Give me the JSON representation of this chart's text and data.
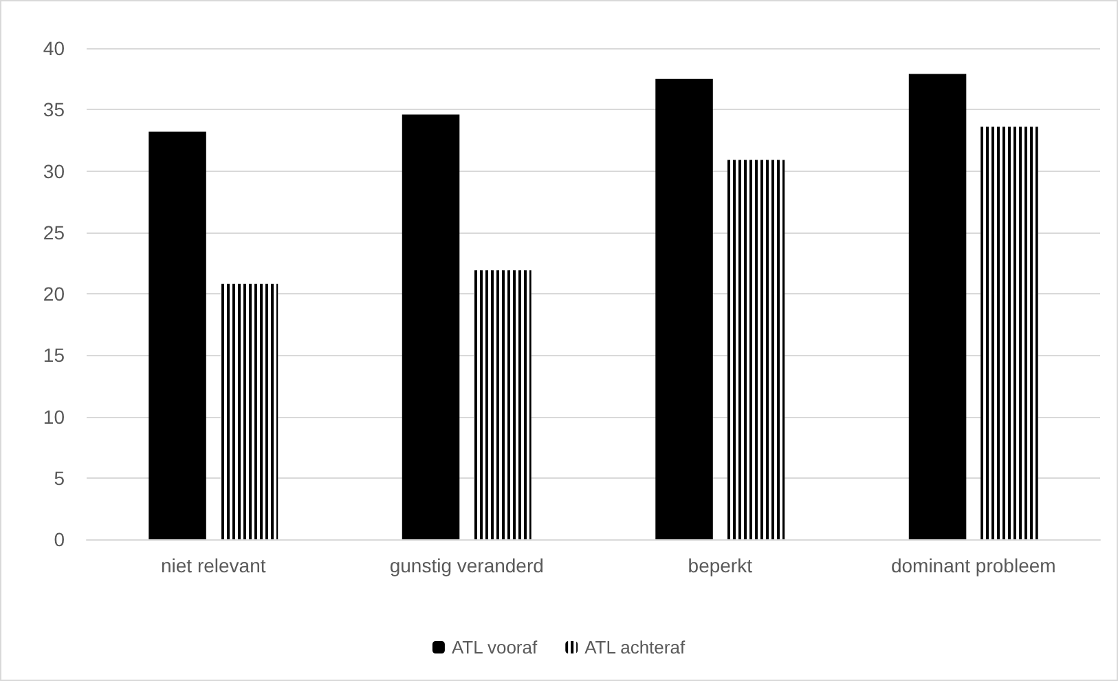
{
  "chart_data": {
    "type": "bar",
    "categories": [
      "niet relevant",
      "gunstig veranderd",
      "beperkt",
      "dominant probleem"
    ],
    "series": [
      {
        "name": "ATL vooraf",
        "color": "#000000",
        "values": [
          33.2,
          34.6,
          37.5,
          37.9
        ]
      },
      {
        "name": "ATL achteraf",
        "color": "#000000",
        "values": [
          20.8,
          21.9,
          30.9,
          33.6
        ]
      }
    ],
    "ylim": [
      0,
      40
    ],
    "yticks": [
      0,
      5,
      10,
      15,
      20,
      25,
      30,
      35,
      40
    ],
    "grid": "y",
    "legend": "bottom"
  }
}
